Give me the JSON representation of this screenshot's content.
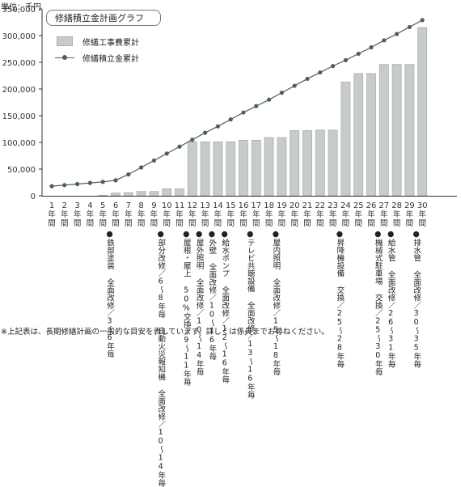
{
  "unit_label": "単位：千円",
  "chart_data": {
    "type": "bar",
    "title": "修繕積立金計画グラフ",
    "ylim": [
      0,
      350000
    ],
    "yticks": [
      "0",
      "50,000",
      "100,000",
      "150,000",
      "200,000",
      "250,000",
      "300,000",
      "350,000"
    ],
    "ytick_values": [
      0,
      50000,
      100000,
      150000,
      200000,
      250000,
      300000,
      350000
    ],
    "categories": [
      "1年間",
      "2年間",
      "3年間",
      "4年間",
      "5年間",
      "6年間",
      "7年間",
      "8年間",
      "9年間",
      "10年間",
      "11年間",
      "12年間",
      "13年間",
      "14年間",
      "15年間",
      "16年間",
      "17年間",
      "18年間",
      "19年間",
      "20年間",
      "21年間",
      "22年間",
      "23年間",
      "24年間",
      "25年間",
      "26年間",
      "27年間",
      "28年間",
      "29年間",
      "30年間"
    ],
    "category_numbers": [
      "1",
      "2",
      "3",
      "4",
      "5",
      "6",
      "7",
      "8",
      "9",
      "10",
      "11",
      "12",
      "13",
      "14",
      "15",
      "16",
      "17",
      "18",
      "19",
      "20",
      "21",
      "22",
      "23",
      "24",
      "25",
      "26",
      "27",
      "28",
      "29",
      "30"
    ],
    "category_suffix": [
      "年",
      "間"
    ],
    "series": [
      {
        "name": "修繕工事費累計",
        "type": "bar",
        "color": "#c8cbcc",
        "values": [
          0,
          0,
          0,
          0,
          1000,
          5000,
          6000,
          8000,
          8000,
          13000,
          13000,
          101000,
          101000,
          101000,
          101000,
          104000,
          104000,
          109000,
          109000,
          122000,
          122000,
          123000,
          123000,
          213000,
          229000,
          229000,
          246000,
          246000,
          246000,
          315000
        ]
      },
      {
        "name": "修繕積立金累計",
        "type": "line",
        "color": "#4e5d66",
        "values": [
          18000,
          20000,
          22000,
          24000,
          26000,
          29000,
          40000,
          53000,
          66000,
          79000,
          92000,
          105000,
          118000,
          130000,
          143000,
          156000,
          168000,
          180000,
          193000,
          206000,
          219000,
          231000,
          243000,
          254000,
          266000,
          278000,
          291000,
          303000,
          316000,
          329000
        ]
      }
    ],
    "legend_position": "top-left",
    "grid": false
  },
  "annotations": [
    {
      "x": 5,
      "text": "●鉄部塗装 全面改修／3〜6年毎"
    },
    {
      "x": 9,
      "text": "●部分改修／6〜8年毎 自動火災報知機 全面改修／10〜14年毎"
    },
    {
      "x": 11,
      "text": "●屋根・屋上 50%交換／9〜11年毎"
    },
    {
      "x": 12,
      "text": "●屋外照明 全面改修／10〜14年毎"
    },
    {
      "x": 13,
      "text": "●外壁 全面改修／10〜16年毎"
    },
    {
      "x": 14,
      "text": "●給水ポンプ 全面改修／12〜16年毎"
    },
    {
      "x": 16,
      "text": "●テレビ共聴設備 全面改修／13〜16年毎"
    },
    {
      "x": 18,
      "text": "●屋内照明 全面改修／15〜18年毎"
    },
    {
      "x": 23,
      "text": "●昇降機設備 交換／25〜28年毎"
    },
    {
      "x": 26,
      "text": "●機械式駐車場 交換／25〜30年毎"
    },
    {
      "x": 27,
      "text": "●給水管 全面改修／26〜31年毎"
    },
    {
      "x": 29,
      "text": "●排水管 全面改修／30〜35年毎"
    }
  ],
  "footnote": "※上記表は、長期修繕計画の一般的な目安を表しています。詳しくは係員までお尋ねください。"
}
